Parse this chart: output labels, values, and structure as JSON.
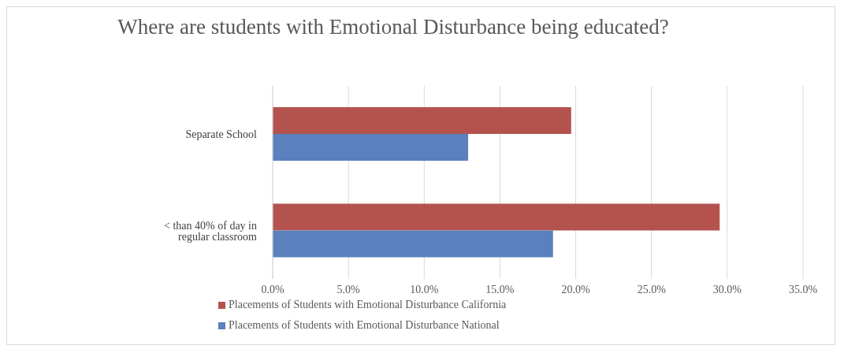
{
  "chart_data": {
    "type": "bar",
    "orientation": "horizontal",
    "title": "Where are students with Emotional Disturbance being educated?",
    "categories": [
      "Separate School",
      "< than 40% of day in regular classroom"
    ],
    "series": [
      {
        "name": "Placements of Students with Emotional Disturbance California",
        "color": "#b4534e",
        "values": [
          19.7,
          29.5
        ]
      },
      {
        "name": "Placements of Students with Emotional Disturbance National",
        "color": "#5a80bd",
        "values": [
          12.9,
          18.5
        ]
      }
    ],
    "xlim": [
      0,
      35
    ],
    "xticks": [
      {
        "value": 0,
        "label": "0.0%"
      },
      {
        "value": 5,
        "label": "5.0%"
      },
      {
        "value": 10,
        "label": "10.0%"
      },
      {
        "value": 15,
        "label": "15.0%"
      },
      {
        "value": 20,
        "label": "20.0%"
      },
      {
        "value": 25,
        "label": "25.0%"
      },
      {
        "value": 30,
        "label": "30.0%"
      },
      {
        "value": 35,
        "label": "35.0%"
      }
    ],
    "grid": "x",
    "legend": "bottom"
  }
}
